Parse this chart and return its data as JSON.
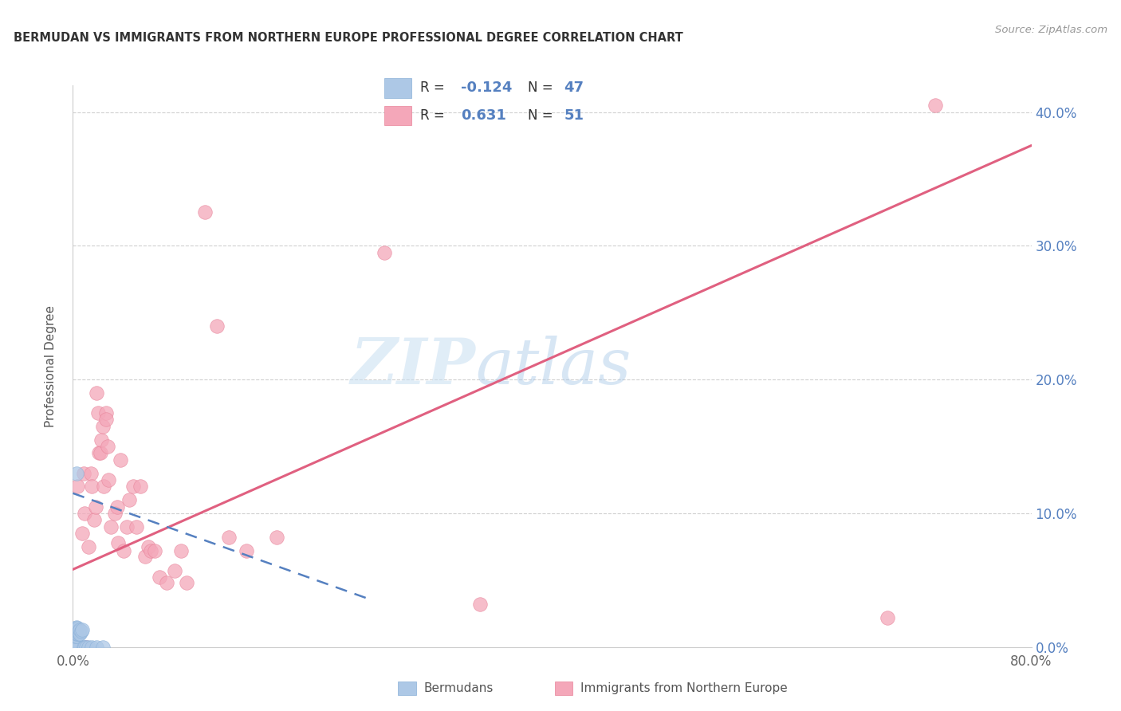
{
  "title": "BERMUDAN VS IMMIGRANTS FROM NORTHERN EUROPE PROFESSIONAL DEGREE CORRELATION CHART",
  "source": "Source: ZipAtlas.com",
  "ylabel": "Professional Degree",
  "watermark_zip": "ZIP",
  "watermark_atlas": "atlas",
  "xmin": 0.0,
  "xmax": 0.8,
  "ymin": 0.0,
  "ymax": 0.42,
  "xticks": [
    0.0,
    0.1,
    0.2,
    0.3,
    0.4,
    0.5,
    0.6,
    0.7,
    0.8
  ],
  "yticks": [
    0.0,
    0.1,
    0.2,
    0.3,
    0.4
  ],
  "blue_color": "#adc8e6",
  "pink_color": "#f4a7b9",
  "blue_edge_color": "#8ab0d8",
  "pink_edge_color": "#e8849a",
  "blue_line_color": "#5580c0",
  "pink_line_color": "#e06080",
  "blue_scatter_x": [
    0.001,
    0.001,
    0.001,
    0.001,
    0.001,
    0.001,
    0.001,
    0.001,
    0.001,
    0.001,
    0.001,
    0.001,
    0.001,
    0.001,
    0.001,
    0.001,
    0.001,
    0.002,
    0.002,
    0.002,
    0.002,
    0.002,
    0.002,
    0.002,
    0.002,
    0.003,
    0.003,
    0.003,
    0.003,
    0.003,
    0.003,
    0.004,
    0.004,
    0.004,
    0.005,
    0.005,
    0.006,
    0.006,
    0.007,
    0.008,
    0.009,
    0.01,
    0.011,
    0.013,
    0.016,
    0.02,
    0.025
  ],
  "blue_scatter_y": [
    0.0,
    0.0,
    0.0,
    0.0,
    0.0,
    0.0,
    0.0,
    0.0,
    0.0,
    0.0,
    0.0,
    0.0,
    0.005,
    0.005,
    0.008,
    0.01,
    0.012,
    0.0,
    0.0,
    0.0,
    0.008,
    0.01,
    0.012,
    0.013,
    0.014,
    0.008,
    0.01,
    0.012,
    0.013,
    0.015,
    0.13,
    0.01,
    0.012,
    0.014,
    0.01,
    0.012,
    0.01,
    0.013,
    0.012,
    0.013,
    0.0,
    0.0,
    0.0,
    0.0,
    0.0,
    0.0,
    0.0
  ],
  "pink_scatter_x": [
    0.004,
    0.006,
    0.008,
    0.009,
    0.01,
    0.011,
    0.013,
    0.015,
    0.016,
    0.018,
    0.019,
    0.02,
    0.021,
    0.022,
    0.023,
    0.024,
    0.025,
    0.026,
    0.028,
    0.028,
    0.029,
    0.03,
    0.032,
    0.035,
    0.037,
    0.038,
    0.04,
    0.042,
    0.045,
    0.047,
    0.05,
    0.053,
    0.056,
    0.06,
    0.063,
    0.065,
    0.068,
    0.072,
    0.078,
    0.085,
    0.09,
    0.095,
    0.11,
    0.12,
    0.13,
    0.145,
    0.17,
    0.26,
    0.34,
    0.68,
    0.72
  ],
  "pink_scatter_y": [
    0.12,
    0.0,
    0.085,
    0.13,
    0.1,
    0.0,
    0.075,
    0.13,
    0.12,
    0.095,
    0.105,
    0.19,
    0.175,
    0.145,
    0.145,
    0.155,
    0.165,
    0.12,
    0.175,
    0.17,
    0.15,
    0.125,
    0.09,
    0.1,
    0.105,
    0.078,
    0.14,
    0.072,
    0.09,
    0.11,
    0.12,
    0.09,
    0.12,
    0.068,
    0.075,
    0.072,
    0.072,
    0.052,
    0.048,
    0.057,
    0.072,
    0.048,
    0.325,
    0.24,
    0.082,
    0.072,
    0.082,
    0.295,
    0.032,
    0.022,
    0.405
  ],
  "pink_line_x0": 0.0,
  "pink_line_y0": 0.058,
  "pink_line_x1": 0.8,
  "pink_line_y1": 0.375,
  "blue_line_x0": 0.0,
  "blue_line_y0": 0.115,
  "blue_line_x1": 0.25,
  "blue_line_y1": 0.035
}
